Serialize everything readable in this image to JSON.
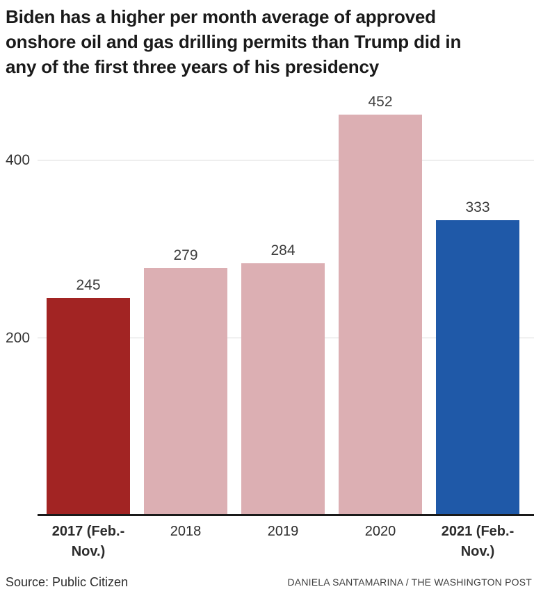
{
  "header": {
    "title_lines": [
      "Biden has a higher per month average of approved",
      "onshore oil and gas drilling permits than Trump did in",
      "any of the first three years of his presidency"
    ]
  },
  "chart_data": {
    "type": "bar",
    "title": "Biden has a higher per month average of approved onshore oil and gas drilling permits than Trump did in any of the first three years of his presidency",
    "categories": [
      "2017 (Feb.-Nov.)",
      "2018",
      "2019",
      "2020",
      "2021 (Feb.-Nov.)"
    ],
    "category_label_lines": [
      [
        "2017 (Feb.-",
        "Nov.)"
      ],
      [
        "2018"
      ],
      [
        "2019"
      ],
      [
        "2020"
      ],
      [
        "2021 (Feb.-",
        "Nov.)"
      ]
    ],
    "category_bold": [
      true,
      false,
      false,
      false,
      true
    ],
    "values": [
      245,
      279,
      284,
      452,
      333
    ],
    "bar_colors": [
      "#a22423",
      "#dcafb3",
      "#dcafb3",
      "#dcafb3",
      "#1f59a8"
    ],
    "yticks": [
      200,
      400
    ],
    "ylim": [
      0,
      480
    ],
    "xlabel": "",
    "ylabel": "",
    "legend": "none",
    "grid": "horizontal",
    "gridline_color": "#d9d9d9",
    "axis_line_color": "#1a1a1a",
    "tick_label_color": "#333333",
    "value_label_color": "#3d3d3d",
    "xaxis_label_color": "#2b2b2b"
  },
  "footer": {
    "source": "Source: Public Citizen",
    "credit": "DANIELA SANTAMARINA / THE WASHINGTON POST"
  }
}
